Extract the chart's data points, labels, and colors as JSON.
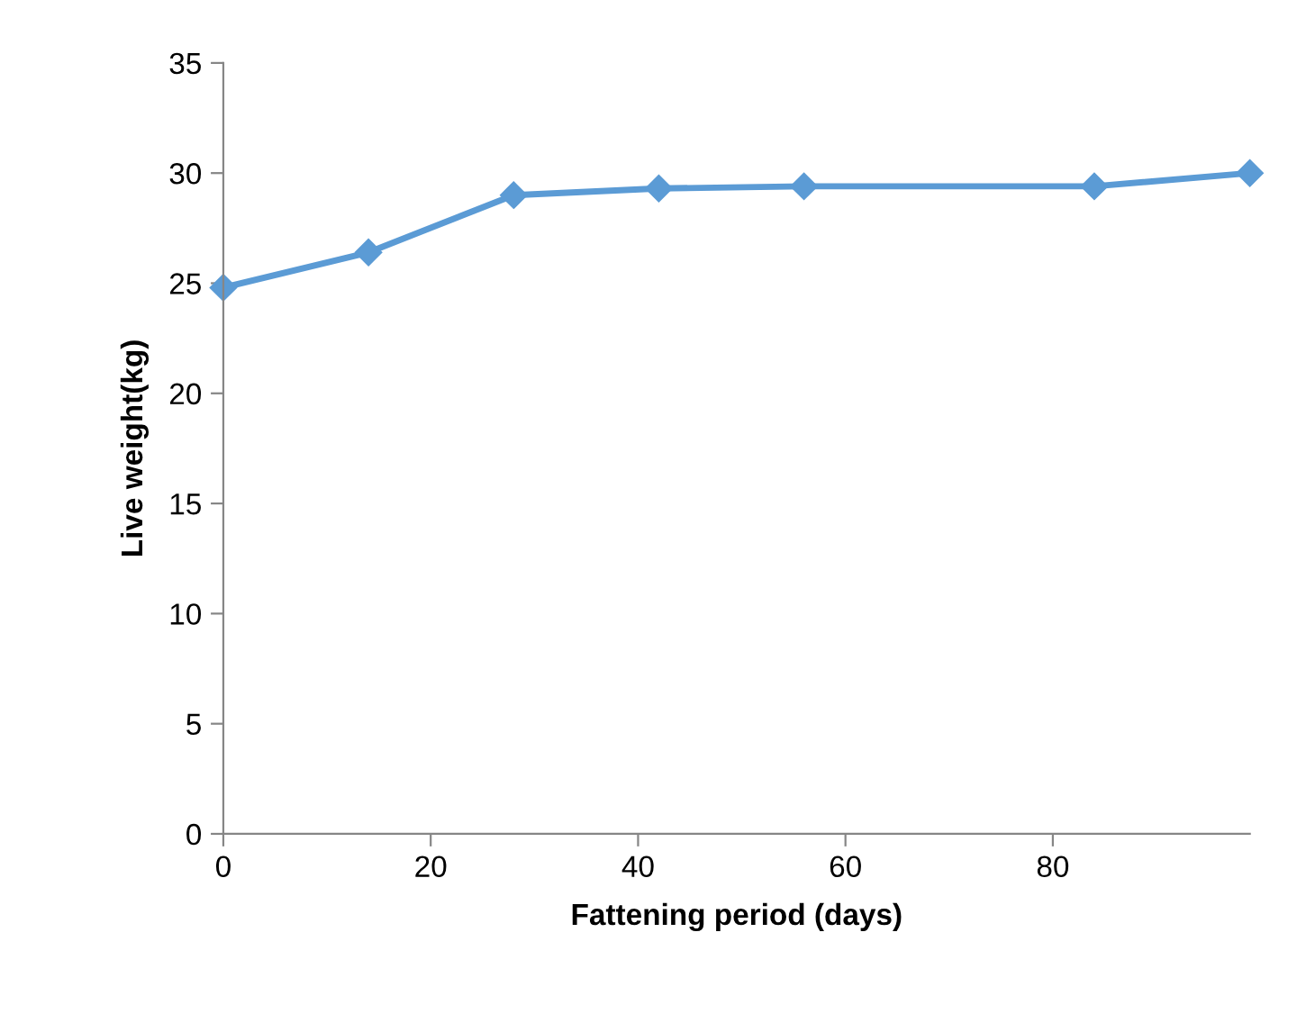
{
  "chart_data": {
    "type": "line",
    "xlabel": "Fattening period (days)",
    "ylabel": "Live weight(kg)",
    "x": [
      0,
      14,
      28,
      42,
      56,
      84,
      99
    ],
    "series": [
      {
        "color": "#5b9bd5",
        "values": [
          24.8,
          26.4,
          29.0,
          29.3,
          29.4,
          29.4,
          30.0
        ]
      }
    ],
    "xlim": [
      0,
      99
    ],
    "xticks": [
      0,
      20,
      40,
      60,
      80
    ],
    "ylim": [
      0,
      35
    ],
    "yticks": [
      0,
      5,
      10,
      15,
      20,
      25,
      30,
      35
    ],
    "marker": "diamond",
    "line_style": "solid",
    "grid": false
  }
}
